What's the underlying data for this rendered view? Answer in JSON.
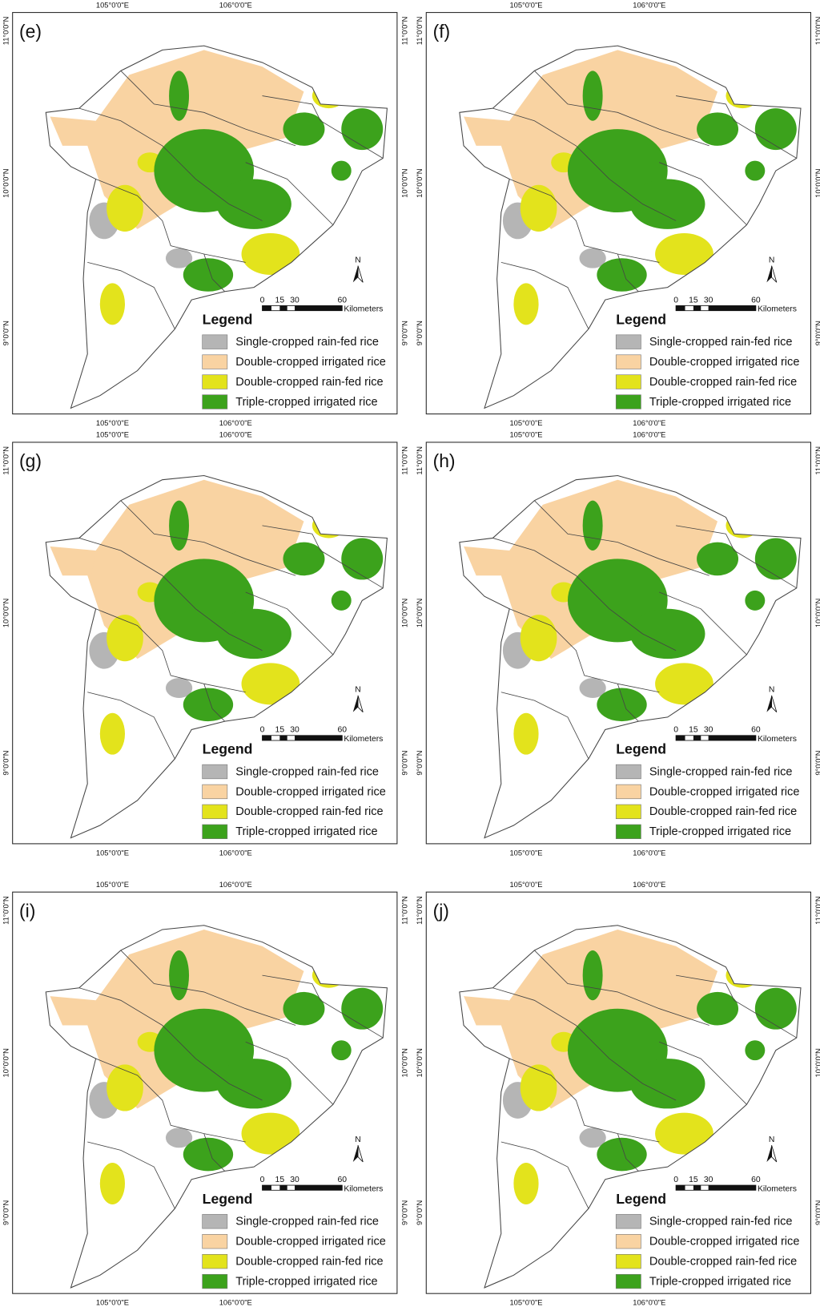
{
  "panels": [
    {
      "label": "(e)"
    },
    {
      "label": "(f)"
    },
    {
      "label": "(g)"
    },
    {
      "label": "(h)"
    },
    {
      "label": "(i)"
    },
    {
      "label": "(j)"
    }
  ],
  "longitude_labels": [
    "105°0'0\"E",
    "106°0'0\"E"
  ],
  "latitude_labels": [
    "11°0'0\"N",
    "10°0'0\"N",
    "9°0'0\"N"
  ],
  "north_label": "N",
  "scale_bar": {
    "ticks": [
      "0",
      "15",
      "30",
      "60"
    ],
    "unit": "Kilometers"
  },
  "legend": {
    "title": "Legend",
    "items": [
      {
        "label": "Single-cropped rain-fed rice",
        "color": "#b5b5b5"
      },
      {
        "label": "Double-cropped irrigated rice",
        "color": "#f9d3a2"
      },
      {
        "label": "Double-cropped rain-fed rice",
        "color": "#e3e31c"
      },
      {
        "label": "Triple-cropped irrigated rice",
        "color": "#3ca21c"
      }
    ]
  }
}
